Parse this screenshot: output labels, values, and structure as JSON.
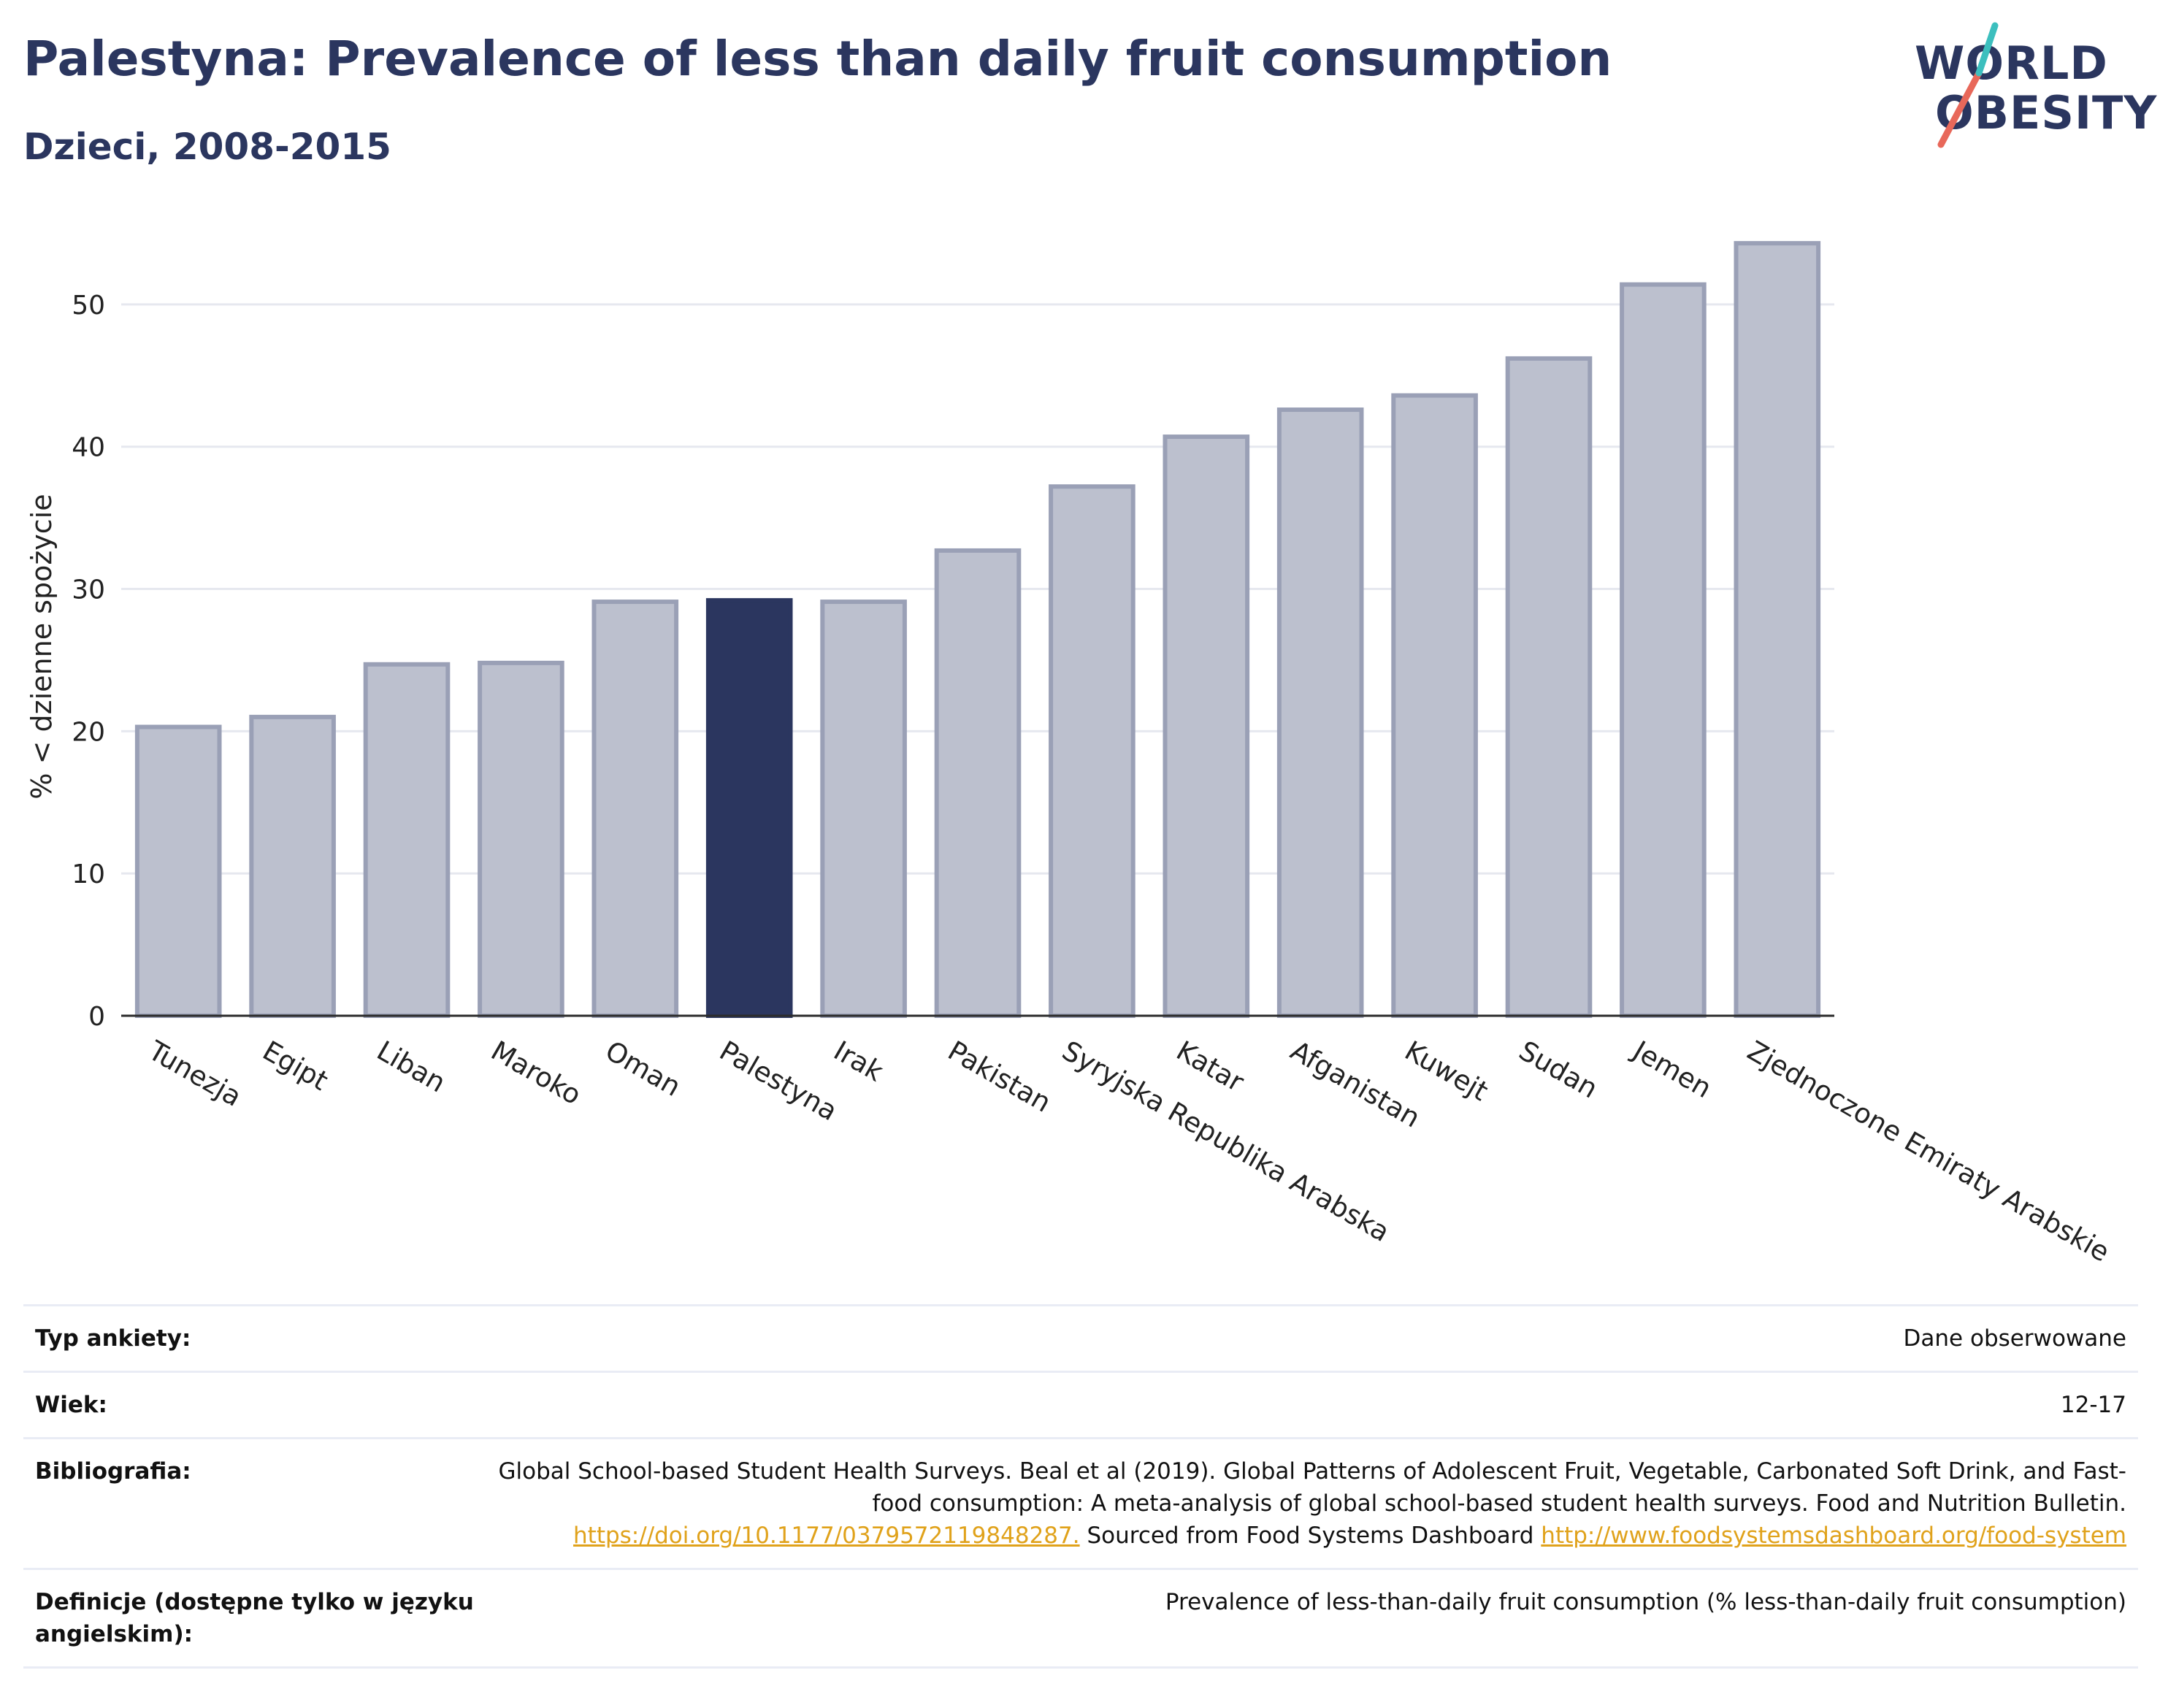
{
  "header": {
    "title": "Palestyna: Prevalence of less than daily fruit consumption",
    "subtitle": "Dzieci, 2008-2015"
  },
  "logo": {
    "line1": "WORLD",
    "line2": "OBESITY"
  },
  "colors": {
    "highlight": "#2b365f",
    "bar": "#bcc0ce",
    "bar_border": "#9aa0b6",
    "grid": "#e6e8ef",
    "accent_red": "#e8685a",
    "accent_teal": "#3cbfbe"
  },
  "chart_data": {
    "type": "bar",
    "ylabel": "% < dzienne spożycie",
    "ylim": [
      0,
      56
    ],
    "yticks": [
      0,
      10,
      20,
      30,
      40,
      50
    ],
    "highlight": "Palestyna",
    "categories": [
      "Tunezja",
      "Egipt",
      "Liban",
      "Maroko",
      "Oman",
      "Palestyna",
      "Irak",
      "Pakistan",
      "Syryjska Republika Arabska",
      "Katar",
      "Afganistan",
      "Kuwejt",
      "Sudan",
      "Jemen",
      "Zjednoczone Emiraty Arabskie"
    ],
    "values": [
      20.3,
      21.0,
      24.7,
      24.8,
      29.1,
      29.2,
      29.1,
      32.7,
      37.2,
      40.7,
      42.6,
      43.6,
      46.2,
      51.4,
      54.3
    ]
  },
  "info": {
    "rows": [
      {
        "label": "Typ ankiety:",
        "value": "Dane obserwowane"
      },
      {
        "label": "Wiek:",
        "value": "12-17"
      },
      {
        "label": "Bibliografia:",
        "value": "Global School-based Student Health Surveys. Beal et al (2019). Global Patterns of Adolescent Fruit, Vegetable, Carbonated Soft Drink, and Fast-food consumption: A meta-analysis of global school-based student health surveys. Food and Nutrition Bulletin.",
        "link1": "https://doi.org/10.1177/0379572119848287.",
        "mid": " Sourced from Food Systems Dashboard ",
        "link2": "http://www.foodsystemsdashboard.org/food-system"
      },
      {
        "label": "Definicje (dostępne tylko w języku angielskim):",
        "value": "Prevalence of less-than-daily fruit consumption (% less-than-daily fruit consumption)"
      }
    ]
  }
}
